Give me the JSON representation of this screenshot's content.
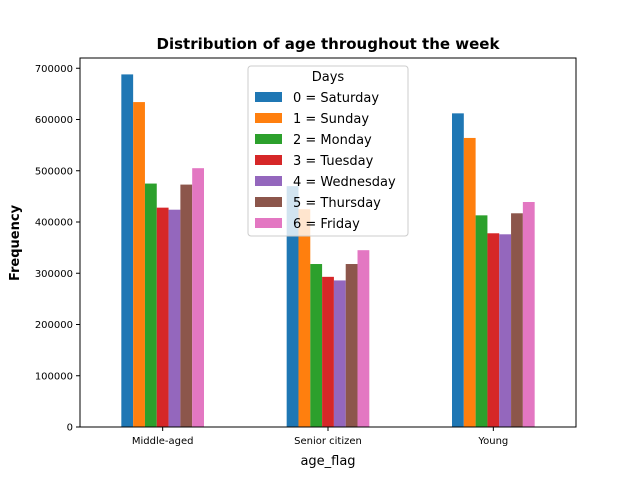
{
  "chart_data": {
    "type": "bar",
    "title": "Distribution of age throughout the week",
    "xlabel": "age_flag",
    "ylabel": "Frequency",
    "categories": [
      "Middle-aged",
      "Senior citizen",
      "Young"
    ],
    "ylim": [
      0,
      720000
    ],
    "yticks": [
      0,
      100000,
      200000,
      300000,
      400000,
      500000,
      600000,
      700000
    ],
    "grid": false,
    "legend": {
      "title": "Days",
      "placement": "top-center"
    },
    "series": [
      {
        "name": "0 = Saturday",
        "color": "#1f77b4",
        "values": [
          688000,
          470000,
          612000
        ]
      },
      {
        "name": "1 = Sunday",
        "color": "#ff7f0e",
        "values": [
          634000,
          425000,
          564000
        ]
      },
      {
        "name": "2 = Monday",
        "color": "#2ca02c",
        "values": [
          475000,
          318000,
          413000
        ]
      },
      {
        "name": "3 = Tuesday",
        "color": "#d62728",
        "values": [
          428000,
          293000,
          378000
        ]
      },
      {
        "name": "4 = Wednesday",
        "color": "#9467bd",
        "values": [
          424000,
          286000,
          376000
        ]
      },
      {
        "name": "5 = Thursday",
        "color": "#8c564b",
        "values": [
          473000,
          318000,
          417000
        ]
      },
      {
        "name": "6 = Friday",
        "color": "#e377c2",
        "values": [
          505000,
          345000,
          439000
        ]
      }
    ]
  }
}
